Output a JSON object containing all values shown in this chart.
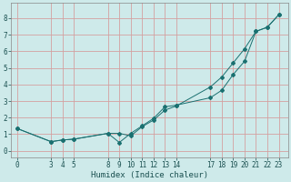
{
  "title": "",
  "xlabel": "Humidex (Indice chaleur)",
  "ylabel": "",
  "bg_color": "#ceeaea",
  "grid_color": "#d4a0a0",
  "line_color": "#1a7070",
  "x_line1": [
    0,
    3,
    4,
    5,
    8,
    9,
    10,
    11,
    12,
    13,
    14,
    17,
    18,
    19,
    20,
    21,
    22,
    23
  ],
  "y_line1": [
    1.35,
    0.55,
    0.65,
    0.7,
    1.05,
    1.05,
    0.9,
    1.45,
    1.85,
    2.45,
    2.7,
    3.85,
    4.45,
    5.3,
    6.15,
    7.2,
    7.45,
    8.2
  ],
  "x_line2": [
    0,
    3,
    4,
    5,
    8,
    9,
    10,
    11,
    12,
    13,
    14,
    17,
    18,
    19,
    20,
    21,
    22,
    23
  ],
  "y_line2": [
    1.35,
    0.55,
    0.65,
    0.7,
    1.05,
    0.5,
    1.05,
    1.5,
    1.95,
    2.65,
    2.75,
    3.2,
    3.65,
    4.6,
    5.4,
    7.2,
    7.45,
    8.2
  ],
  "xlim": [
    -0.5,
    23.8
  ],
  "ylim": [
    -0.4,
    8.9
  ],
  "xticks": [
    0,
    3,
    4,
    5,
    8,
    9,
    10,
    11,
    12,
    13,
    14,
    17,
    18,
    19,
    20,
    21,
    22,
    23
  ],
  "yticks": [
    0,
    1,
    2,
    3,
    4,
    5,
    6,
    7,
    8
  ],
  "tick_fontsize": 5.5,
  "xlabel_fontsize": 6.5,
  "marker": "D",
  "markersize": 2.0,
  "linewidth": 0.7
}
